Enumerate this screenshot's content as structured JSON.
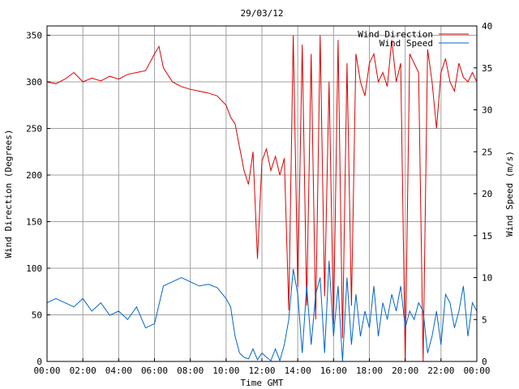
{
  "chart_data": {
    "type": "line",
    "title": "29/03/12",
    "xlabel": "Time GMT",
    "ylabel": "Wind Direction (Degrees)",
    "y2label": "Wind Speed (m/s)",
    "xlim": [
      0,
      24
    ],
    "ylim": [
      0,
      360
    ],
    "y2lim": [
      0,
      40
    ],
    "x_tick_labels": [
      "00:00",
      "02:00",
      "04:00",
      "06:00",
      "08:00",
      "10:00",
      "12:00",
      "14:00",
      "16:00",
      "18:00",
      "20:00",
      "22:00",
      "00:00"
    ],
    "y_ticks": [
      0,
      50,
      100,
      150,
      200,
      250,
      300,
      350
    ],
    "y2_ticks": [
      0,
      5,
      10,
      15,
      20,
      25,
      30,
      35,
      40
    ],
    "grid": true,
    "legend_position": "top-right",
    "series": [
      {
        "name": "Wind Direction",
        "axis": "left",
        "color": "#dd0000",
        "x": [
          0,
          0.5,
          1,
          1.5,
          2,
          2.5,
          3,
          3.5,
          4,
          4.5,
          5,
          5.5,
          6,
          6.25,
          6.5,
          7,
          7.5,
          8,
          8.5,
          9,
          9.5,
          10,
          10.25,
          10.5,
          10.75,
          11,
          11.25,
          11.5,
          11.75,
          12,
          12.25,
          12.5,
          12.75,
          13,
          13.25,
          13.5,
          13.75,
          14,
          14.25,
          14.5,
          14.75,
          15,
          15.25,
          15.5,
          15.75,
          16,
          16.25,
          16.5,
          16.75,
          17,
          17.25,
          17.5,
          17.75,
          18,
          18.25,
          18.5,
          18.75,
          19,
          19.25,
          19.5,
          19.75,
          20,
          20.25,
          20.5,
          20.75,
          21,
          21.25,
          21.5,
          21.75,
          22,
          22.25,
          22.5,
          22.75,
          23,
          23.25,
          23.5,
          23.75,
          24
        ],
        "values": [
          300,
          298,
          303,
          310,
          300,
          304,
          301,
          306,
          303,
          308,
          310,
          312,
          330,
          338,
          315,
          300,
          295,
          292,
          290,
          288,
          285,
          275,
          262,
          255,
          230,
          205,
          190,
          225,
          110,
          215,
          228,
          205,
          220,
          200,
          218,
          55,
          350,
          80,
          340,
          60,
          330,
          45,
          350,
          70,
          300,
          40,
          345,
          25,
          320,
          60,
          330,
          300,
          285,
          320,
          330,
          300,
          310,
          295,
          345,
          300,
          320,
          0,
          330,
          320,
          310,
          0,
          335,
          300,
          250,
          310,
          325,
          300,
          290,
          320,
          305,
          300,
          310,
          300
        ]
      },
      {
        "name": "Wind Speed",
        "axis": "right",
        "color": "#0066cc",
        "x": [
          0,
          0.5,
          1,
          1.5,
          2,
          2.5,
          3,
          3.5,
          4,
          4.5,
          5,
          5.5,
          6,
          6.5,
          7,
          7.5,
          8,
          8.5,
          9,
          9.5,
          10,
          10.25,
          10.5,
          10.75,
          11,
          11.25,
          11.5,
          11.75,
          12,
          12.25,
          12.5,
          12.75,
          13,
          13.25,
          13.5,
          13.75,
          14,
          14.25,
          14.5,
          14.75,
          15,
          15.25,
          15.5,
          15.75,
          16,
          16.25,
          16.5,
          16.75,
          17,
          17.25,
          17.5,
          17.75,
          18,
          18.25,
          18.5,
          18.75,
          19,
          19.25,
          19.5,
          19.75,
          20,
          20.25,
          20.5,
          20.75,
          21,
          21.25,
          21.5,
          21.75,
          22,
          22.25,
          22.5,
          22.75,
          23,
          23.25,
          23.5,
          23.75,
          24
        ],
        "values": [
          7,
          7.5,
          7,
          6.5,
          7.5,
          6,
          7,
          5.5,
          6,
          5,
          6.5,
          4,
          4.5,
          9,
          9.5,
          10,
          9.5,
          9,
          9.2,
          8.8,
          7.5,
          6.5,
          3,
          1,
          0.5,
          0.3,
          1.5,
          0.2,
          1,
          0.5,
          0.1,
          1.5,
          0.1,
          2,
          5,
          11,
          8,
          1,
          9,
          2,
          8,
          10,
          1,
          12,
          3,
          9,
          0,
          10,
          2,
          8,
          3,
          6,
          4,
          9,
          3,
          7,
          5,
          8,
          6,
          9,
          4,
          6,
          5,
          7,
          6,
          1,
          3,
          6,
          2,
          8,
          7,
          4,
          6,
          9,
          3,
          7,
          6
        ]
      }
    ]
  }
}
